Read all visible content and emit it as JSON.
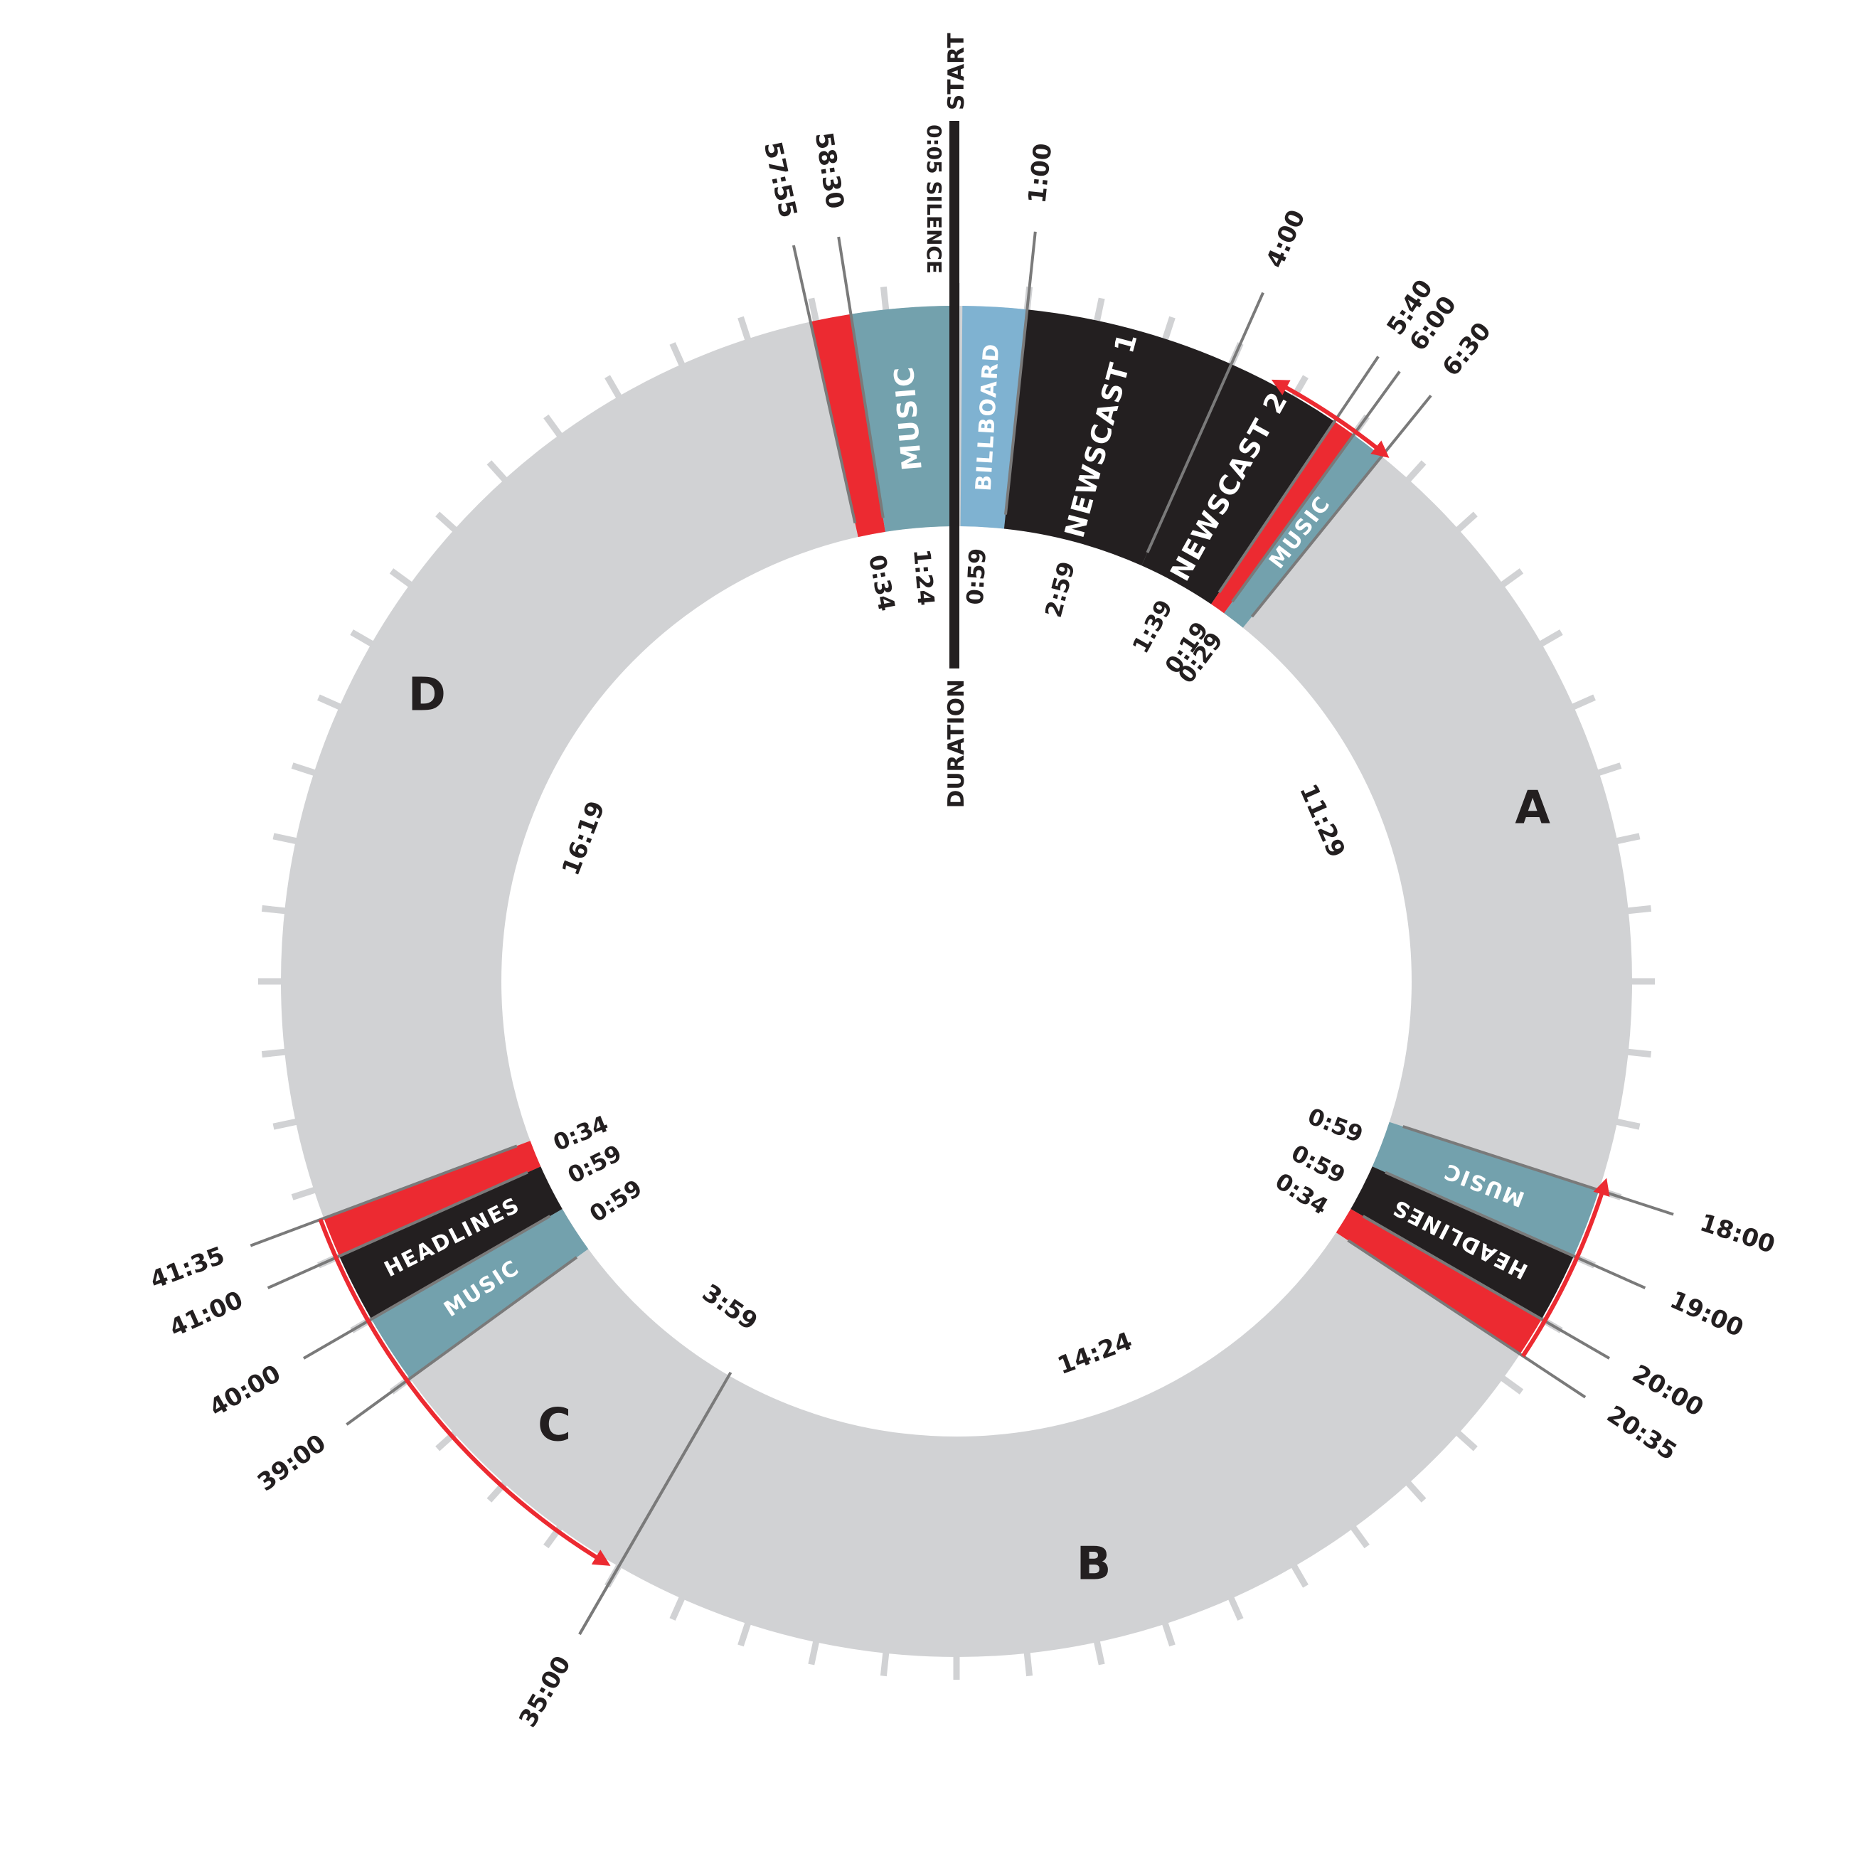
{
  "axis_labels": {
    "start": "START",
    "silence": "0:05 SILENCE",
    "duration": "DURATION"
  },
  "colors": {
    "ring": "#d1d2d4",
    "music": "#73a1ad",
    "billboard": "#7fb2d1",
    "news": "#231f20",
    "promo": "#ec2a31",
    "leader": "#7a7a7a",
    "text": "#231f20",
    "silence": "#bdbec0"
  },
  "segments": [
    {
      "id": "billboard",
      "kind": "billboard",
      "label": "BILLBOARD",
      "start": 0.083,
      "end": 1.0
    },
    {
      "id": "newscast-1",
      "kind": "news",
      "label": "NEWSCAST 1",
      "start": 1.0,
      "end": 4.0
    },
    {
      "id": "newscast-2",
      "kind": "news",
      "label": "NEWSCAST 2",
      "start": 4.0,
      "end": 5.67
    },
    {
      "id": "promo-1",
      "kind": "promo",
      "label": "",
      "start": 5.67,
      "end": 6.0
    },
    {
      "id": "music-1",
      "kind": "music",
      "label": "MUSIC",
      "start": 6.0,
      "end": 6.5
    },
    {
      "id": "music-2",
      "kind": "music",
      "label": "MUSIC",
      "start": 18.0,
      "end": 19.0
    },
    {
      "id": "headlines-1",
      "kind": "news",
      "label": "HEADLINES",
      "start": 19.0,
      "end": 20.0
    },
    {
      "id": "promo-2",
      "kind": "promo",
      "label": "",
      "start": 20.0,
      "end": 20.58
    },
    {
      "id": "music-3",
      "kind": "music",
      "label": "MUSIC",
      "start": 39.0,
      "end": 40.0
    },
    {
      "id": "headlines-2",
      "kind": "news",
      "label": "HEADLINES",
      "start": 40.0,
      "end": 41.0
    },
    {
      "id": "promo-3",
      "kind": "promo",
      "label": "",
      "start": 41.0,
      "end": 41.58
    },
    {
      "id": "promo-4",
      "kind": "promo",
      "label": "",
      "start": 57.92,
      "end": 58.5
    },
    {
      "id": "music-4",
      "kind": "music",
      "label": "MUSIC",
      "start": 58.5,
      "end": 59.92
    }
  ],
  "start_times": [
    {
      "text": "1:00",
      "at": 1.0
    },
    {
      "text": "4:00",
      "at": 4.0
    },
    {
      "text": "5:40",
      "at": 5.67
    },
    {
      "text": "6:00",
      "at": 6.0
    },
    {
      "text": "6:30",
      "at": 6.5
    },
    {
      "text": "18:00",
      "at": 18.0
    },
    {
      "text": "19:00",
      "at": 19.0
    },
    {
      "text": "20:00",
      "at": 20.0
    },
    {
      "text": "20:35",
      "at": 20.58
    },
    {
      "text": "35:00",
      "at": 35.0
    },
    {
      "text": "39:00",
      "at": 39.0
    },
    {
      "text": "40:00",
      "at": 40.0
    },
    {
      "text": "41:00",
      "at": 41.0
    },
    {
      "text": "41:35",
      "at": 41.58
    },
    {
      "text": "57:55",
      "at": 57.92
    },
    {
      "text": "58:30",
      "at": 58.5
    }
  ],
  "durations": [
    {
      "text": "0:59",
      "at": 0.5
    },
    {
      "text": "2:59",
      "at": 2.5
    },
    {
      "text": "1:39",
      "at": 4.85
    },
    {
      "text": "0:19",
      "at": 5.8
    },
    {
      "text": "0:29",
      "at": 6.2
    },
    {
      "text": "0:59",
      "at": 18.5
    },
    {
      "text": "0:59",
      "at": 19.5
    },
    {
      "text": "0:34",
      "at": 20.3
    },
    {
      "text": "0:59",
      "at": 39.5
    },
    {
      "text": "0:59",
      "at": 40.5
    },
    {
      "text": "0:34",
      "at": 41.3
    },
    {
      "text": "0:34",
      "at": 58.2
    },
    {
      "text": "1:24",
      "at": 59.2
    }
  ],
  "blocks": [
    {
      "letter": "A",
      "duration": "11:29",
      "at": 12.25
    },
    {
      "letter": "B",
      "duration": "14:24",
      "at": 27.8
    },
    {
      "letter": "C",
      "duration": "3:59",
      "at": 37.0
    },
    {
      "letter": "D",
      "duration": "16:19",
      "at": 49.7
    }
  ],
  "divider_at": 35.0,
  "arrows": [
    {
      "from": 4.7,
      "to": 6.5
    },
    {
      "from": 20.58,
      "to": 17.9
    },
    {
      "from": 41.58,
      "to": 35.2
    }
  ]
}
